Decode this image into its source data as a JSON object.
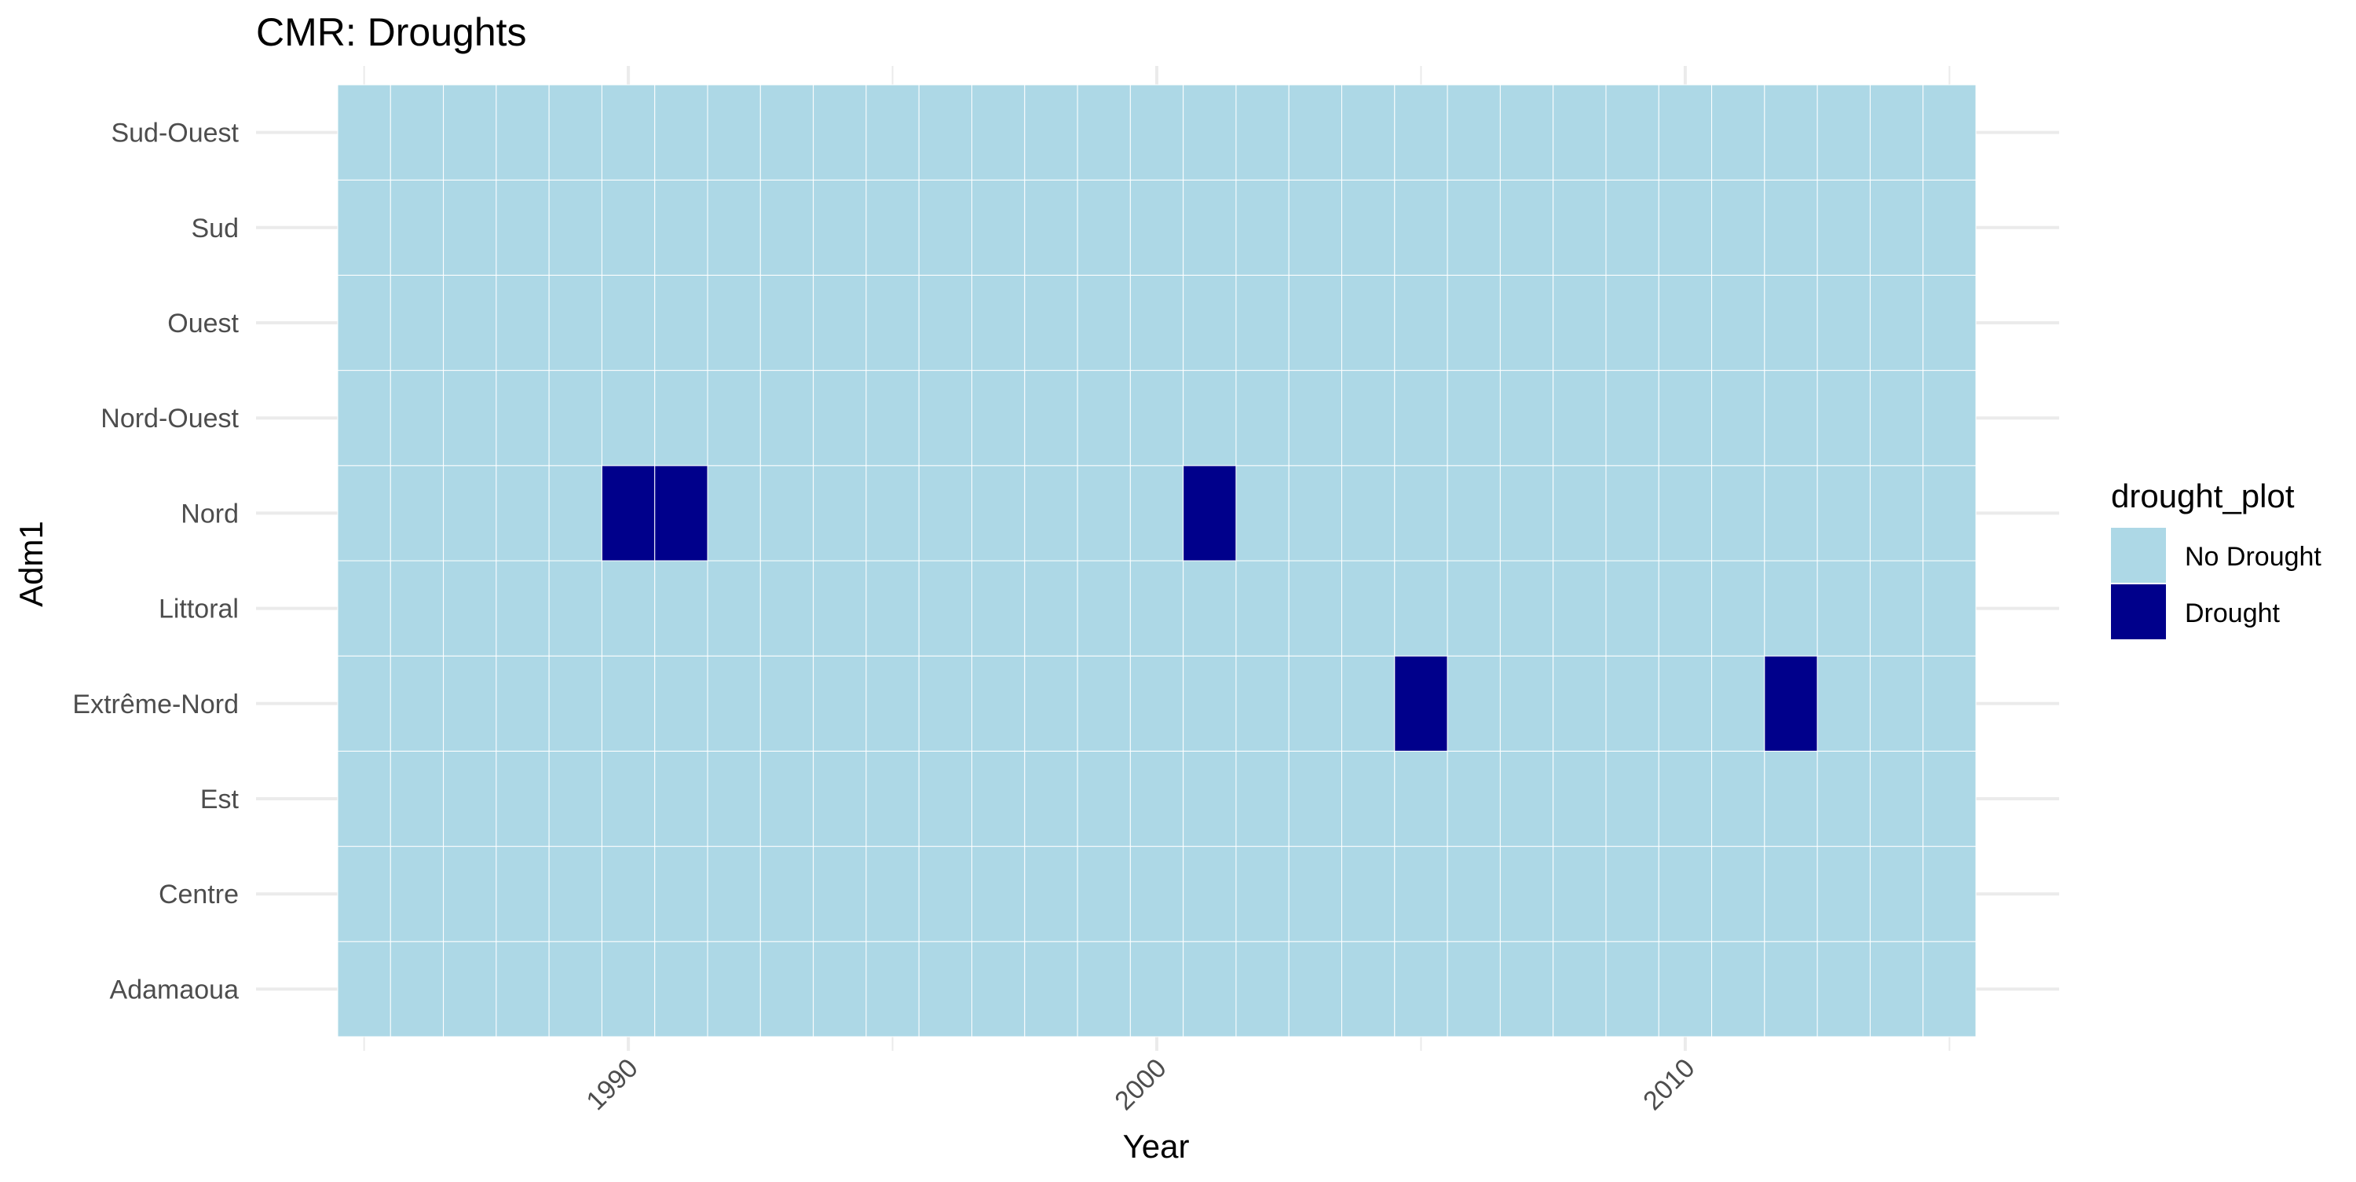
{
  "chart_data": {
    "type": "heatmap",
    "title": "CMR: Droughts",
    "xlabel": "Year",
    "ylabel": "Adm1",
    "x_start": 1985,
    "x_end": 2015,
    "xlim": [
      1984.5,
      2015.5
    ],
    "x_ticks": [
      1990,
      2000,
      2010
    ],
    "categories": [
      "Adamaoua",
      "Centre",
      "Est",
      "Extrême-Nord",
      "Littoral",
      "Nord",
      "Nord-Ouest",
      "Ouest",
      "Sud",
      "Sud-Ouest"
    ],
    "default_value": "No Drought",
    "droughts": [
      {
        "region": "Nord",
        "year": 1990
      },
      {
        "region": "Nord",
        "year": 1991
      },
      {
        "region": "Nord",
        "year": 2001
      },
      {
        "region": "Extrême-Nord",
        "year": 2005
      },
      {
        "region": "Extrême-Nord",
        "year": 2012
      }
    ],
    "legend": {
      "title": "drought_plot",
      "position": "right",
      "items": [
        {
          "label": "No Drought",
          "color": "#add8e6"
        },
        {
          "label": "Drought",
          "color": "#00008b"
        }
      ]
    },
    "grid": true
  }
}
